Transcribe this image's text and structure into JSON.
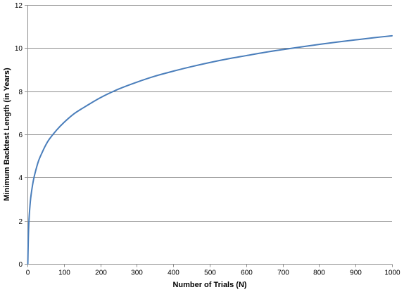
{
  "chart_data": {
    "type": "line",
    "title": "",
    "xlabel": "Number of Trials (N)",
    "ylabel": "Minimum Backtest Length (in Years)",
    "xlim": [
      0,
      1000
    ],
    "ylim": [
      0,
      12
    ],
    "x_ticks": [
      0,
      100,
      200,
      300,
      400,
      500,
      600,
      700,
      800,
      900,
      1000
    ],
    "y_ticks": [
      0,
      2,
      4,
      6,
      8,
      10,
      12
    ],
    "grid": {
      "horizontal": true,
      "vertical": false
    },
    "legend": "none",
    "series": [
      {
        "color": "#4a7ebb",
        "x": [
          1,
          2,
          3,
          5,
          8,
          10,
          15,
          20,
          30,
          40,
          50,
          60,
          80,
          100,
          125,
          150,
          200,
          250,
          300,
          350,
          400,
          450,
          500,
          550,
          600,
          650,
          700,
          750,
          800,
          850,
          900,
          950,
          1000
        ],
        "y": [
          0.0,
          0.9,
          1.55,
          2.25,
          2.9,
          3.2,
          3.75,
          4.15,
          4.75,
          5.15,
          5.5,
          5.78,
          6.2,
          6.55,
          6.92,
          7.2,
          7.7,
          8.1,
          8.42,
          8.7,
          8.93,
          9.14,
          9.33,
          9.5,
          9.65,
          9.8,
          9.93,
          10.05,
          10.17,
          10.28,
          10.38,
          10.48,
          10.57
        ]
      }
    ]
  }
}
